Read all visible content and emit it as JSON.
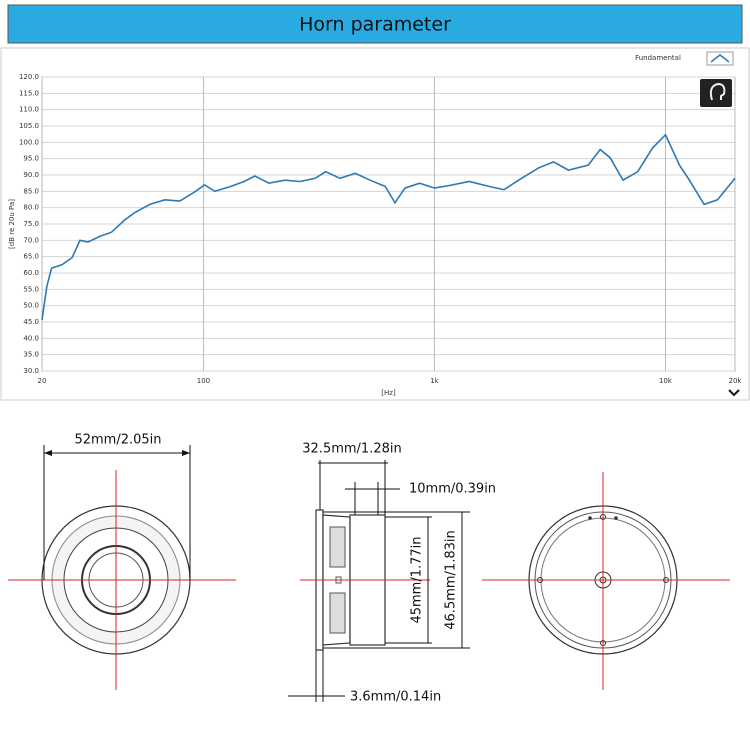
{
  "header": {
    "title": "Horn parameter"
  },
  "chart_data": {
    "type": "line",
    "x_scale": "log",
    "grid": true,
    "legend": "top-right",
    "y_label": "[dB re 20u Pa]",
    "x_label": "[Hz]",
    "x": [
      20,
      21,
      22,
      24.4,
      27,
      29.2,
      31.6,
      35.6,
      40,
      45.7,
      50.5,
      58.6,
      68,
      79,
      91.5,
      101,
      112,
      130,
      150,
      167,
      192,
      225,
      262,
      305,
      338,
      390,
      454,
      527,
      612,
      675,
      745,
      862,
      1000,
      1161,
      1415,
      1720,
      2000,
      2320,
      2830,
      3280,
      3800,
      4630,
      5220,
      5760,
      6550,
      7580,
      8800,
      10000,
      11500,
      12700,
      14700,
      16800,
      20000
    ],
    "series": [
      {
        "name": "Fundamental",
        "color": "#2a7ab8",
        "values": [
          45.6,
          56,
          61.5,
          62.5,
          64.7,
          70,
          69.5,
          71.2,
          72.5,
          76.3,
          78.5,
          81,
          82.4,
          82,
          84.8,
          87,
          85,
          86.4,
          88,
          89.7,
          87.5,
          88.4,
          88,
          89,
          91,
          89,
          90.5,
          88.4,
          86.5,
          81.5,
          86,
          87.5,
          86,
          86.8,
          88,
          86.5,
          85.5,
          88.5,
          92.2,
          94,
          91.5,
          93,
          97.8,
          95.3,
          88.4,
          91,
          98.3,
          102.3,
          93,
          88.4,
          81,
          82.4,
          89
        ]
      }
    ],
    "xlim": [
      20,
      20000
    ],
    "ylim": [
      30,
      120
    ],
    "xticks": [
      20,
      100,
      {
        "value": 1000,
        "label": "1k"
      },
      {
        "value": 10000,
        "label": "10k"
      },
      {
        "value": 20000,
        "label": "20k"
      }
    ],
    "yticks": [
      {
        "value": 30,
        "label": "30.0"
      },
      {
        "value": 35,
        "label": "35.0"
      },
      {
        "value": 40,
        "label": "40.0"
      },
      {
        "value": 45,
        "label": "45.0"
      },
      {
        "value": 50,
        "label": "50.0"
      },
      {
        "value": 55,
        "label": "55.0"
      },
      {
        "value": 60,
        "label": "60.0"
      },
      {
        "value": 65,
        "label": "65.0"
      },
      {
        "value": 70,
        "label": "70.0"
      },
      {
        "value": 75,
        "label": "75.0"
      },
      {
        "value": 80,
        "label": "80.0"
      },
      {
        "value": 85,
        "label": "85.0"
      },
      {
        "value": 90,
        "label": "90.0"
      },
      {
        "value": 95,
        "label": "95.0"
      },
      {
        "value": 100,
        "label": "100.0"
      },
      {
        "value": 105,
        "label": "105.0"
      },
      {
        "value": 110,
        "label": "110.0"
      },
      {
        "value": 115,
        "label": "115.0"
      },
      {
        "value": 120,
        "label": "120.0"
      }
    ]
  },
  "dimensions": {
    "outer_diameter": "52mm/2.05in",
    "depth": "32.5mm/1.28in",
    "magnet": "10mm/0.39in",
    "inner_height": "45mm/1.77in",
    "outer_height": "46.5mm/1.83in",
    "flange": "3.6mm/0.14in"
  }
}
